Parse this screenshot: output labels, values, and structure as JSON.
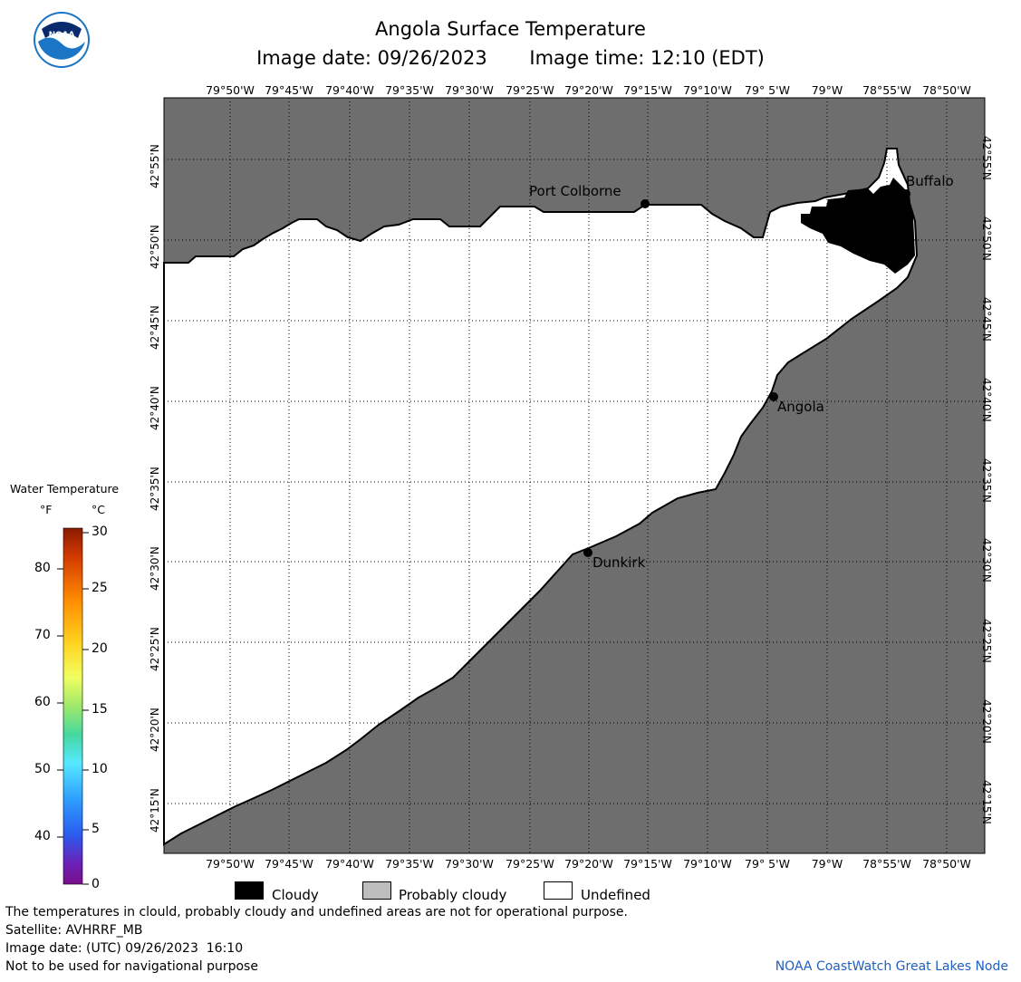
{
  "header": {
    "title": "Angola Surface Temperature",
    "image_date": "Image date: 09/26/2023",
    "image_time": "Image time: 12:10 (EDT)"
  },
  "logo": {
    "text": "NOAA"
  },
  "map": {
    "lon_labels": [
      "79°50'W",
      "79°45'W",
      "79°40'W",
      "79°35'W",
      "79°30'W",
      "79°25'W",
      "79°20'W",
      "79°15'W",
      "79°10'W",
      "79° 5'W",
      "79°W",
      "78°55'W",
      "78°50'W"
    ],
    "lat_labels": [
      "42°55'N",
      "42°50'N",
      "42°45'N",
      "42°40'N",
      "42°35'N",
      "42°30'N",
      "42°25'N",
      "42°20'N",
      "42°15'N"
    ],
    "places": {
      "port_colborne": "Port Colborne",
      "buffalo": "Buffalo",
      "angola": "Angola",
      "dunkirk": "Dunkirk"
    },
    "colors": {
      "land": "#6e6e6e",
      "water_undefined": "#ffffff",
      "cloud": "#000000",
      "grid": "#000000"
    }
  },
  "legend": {
    "title": "Water Temperature",
    "unit_f": "°F",
    "unit_c": "°C",
    "f_ticks": [
      "80",
      "70",
      "60",
      "50",
      "40"
    ],
    "c_ticks": [
      "30",
      "25",
      "20",
      "15",
      "10",
      "5",
      "0"
    ]
  },
  "key": {
    "cloudy": "Cloudy",
    "probably_cloudy": "Probably cloudy",
    "undefined": "Undefined"
  },
  "footer": {
    "disclaimer": "The temperatures in clould, probably cloudy and undefined areas are not for operational purpose.",
    "satellite": "Satellite: AVHRRF_MB",
    "utc_date": "Image date: (UTC) 09/26/2023  16:10",
    "navigation": "Not to be used for navigational purpose",
    "credit": "NOAA CoastWatch Great Lakes Node"
  }
}
